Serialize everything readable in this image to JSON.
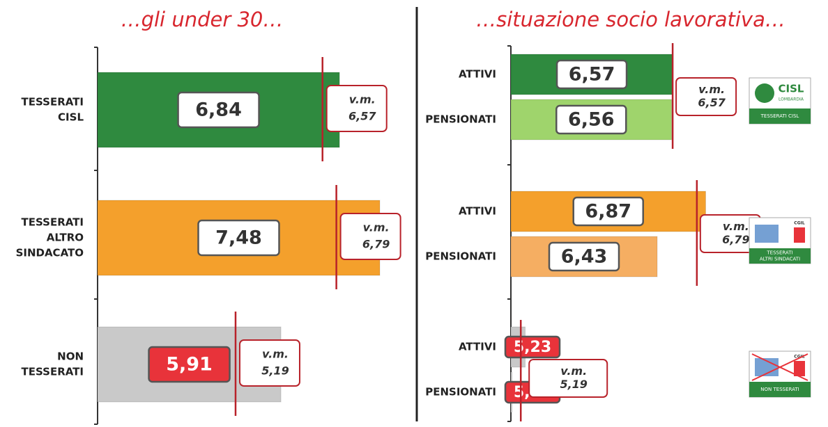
{
  "chart_data": [
    {
      "type": "bar",
      "orientation": "horizontal",
      "title": "…gli under 30…",
      "xlim": [
        3,
        8
      ],
      "categories": [
        [
          "TESSERATI",
          "CISL"
        ],
        [
          "TESSERATI",
          "ALTRO",
          "SINDACATO"
        ],
        [
          "NON",
          "TESSERATI"
        ]
      ],
      "values": [
        6.84,
        7.48,
        5.91
      ],
      "value_labels": [
        "6,84",
        "7,48",
        "5,91"
      ],
      "colors": [
        "#2f8a3f",
        "#f4a02c",
        "#c9c9c9"
      ],
      "label_fills": [
        "#ffffff",
        "#ffffff",
        "#e8333a"
      ],
      "reference_lines": [
        {
          "value": 6.57,
          "label": "v.m.",
          "value_label": "6,57"
        },
        {
          "value": 6.79,
          "label": "v.m.",
          "value_label": "6,79"
        },
        {
          "value": 5.19,
          "label": "v.m.",
          "value_label": "5,19"
        }
      ]
    },
    {
      "type": "bar",
      "orientation": "horizontal",
      "title": "…situazione socio lavorativa…",
      "xlim": [
        5.1,
        7.0
      ],
      "groups": [
        {
          "categories": [
            "ATTIVI",
            "PENSIONATI"
          ],
          "values": [
            6.57,
            6.56
          ],
          "value_labels": [
            "6,57",
            "6,56"
          ],
          "colors": [
            "#2f8a3f",
            "#9fd46c"
          ],
          "label_fills": [
            "#ffffff",
            "#ffffff"
          ],
          "reference": {
            "value": 6.57,
            "label": "v.m.",
            "value_label": "6,57"
          },
          "logo": {
            "top": [
              "CISL",
              "LOMBARDIA"
            ],
            "strip": [
              "TESSERATI CISL"
            ]
          }
        },
        {
          "categories": [
            "ATTIVI",
            "PENSIONATI"
          ],
          "values": [
            6.87,
            6.43
          ],
          "value_labels": [
            "6,87",
            "6,43"
          ],
          "colors": [
            "#f4a02c",
            "#f5ae62"
          ],
          "label_fills": [
            "#ffffff",
            "#ffffff"
          ],
          "reference": {
            "value": 6.79,
            "label": "v.m.",
            "value_label": "6,79"
          },
          "logo": {
            "top": [
              "CGIL"
            ],
            "strip": [
              "TESSERATI",
              "ALTRI SINDACATI"
            ]
          }
        },
        {
          "categories": [
            "ATTIVI",
            "PENSIONATI"
          ],
          "values": [
            5.23,
            5.11
          ],
          "value_labels": [
            "5,23",
            "5,11"
          ],
          "colors": [
            "#c9c9c9",
            "#c9c9c9"
          ],
          "label_fills": [
            "#e8333a",
            "#e8333a"
          ],
          "reference": {
            "value": 5.19,
            "label": "v.m.",
            "value_label": "5,19"
          },
          "logo": {
            "top": [
              "CGIL"
            ],
            "strip": [
              "NON TESSERATI"
            ]
          }
        }
      ]
    }
  ]
}
